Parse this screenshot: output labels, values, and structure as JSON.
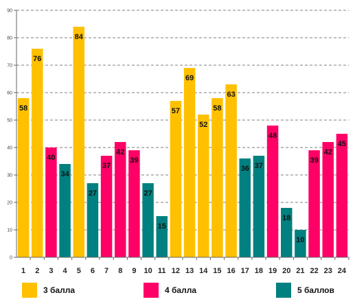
{
  "chart_data": {
    "type": "bar",
    "categories": [
      "1",
      "2",
      "3",
      "4",
      "5",
      "6",
      "7",
      "8",
      "9",
      "10",
      "11",
      "12",
      "13",
      "14",
      "15",
      "16",
      "17",
      "18",
      "19",
      "20",
      "21",
      "22",
      "23",
      "24"
    ],
    "values": [
      58,
      76,
      40,
      34,
      84,
      27,
      37,
      42,
      39,
      27,
      15,
      57,
      69,
      52,
      58,
      63,
      36,
      37,
      48,
      18,
      10,
      39,
      42,
      45
    ],
    "groups": [
      0,
      0,
      1,
      2,
      0,
      2,
      1,
      1,
      1,
      2,
      2,
      0,
      0,
      0,
      0,
      0,
      2,
      2,
      1,
      2,
      2,
      1,
      1,
      1
    ],
    "series": [
      {
        "name": "3 балла",
        "color": "#FFC000"
      },
      {
        "name": "4 балла",
        "color": "#FF0066"
      },
      {
        "name": "5 баллов",
        "color": "#008080"
      }
    ],
    "ylim": [
      0,
      90
    ],
    "ytick_step": 10,
    "grid": true,
    "legend_position": "bottom"
  }
}
